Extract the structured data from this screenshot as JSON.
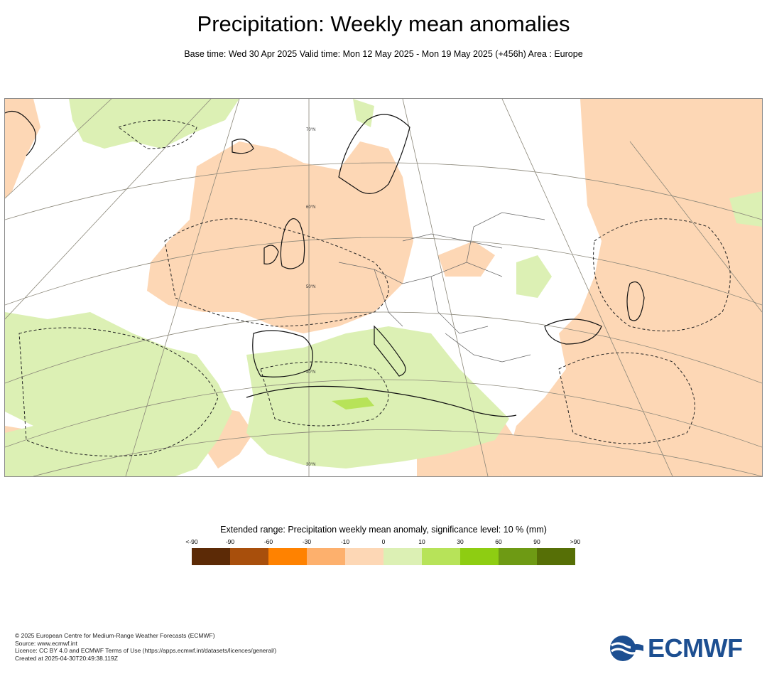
{
  "header": {
    "title": "Precipitation: Weekly mean anomalies",
    "subtitle": "Base time: Wed 30 Apr 2025 Valid time: Mon 12 May 2025 - Mon 19 May 2025 (+456h) Area : Europe"
  },
  "map": {
    "region": "Europe",
    "lat_labels": [
      "70°N",
      "60°N",
      "50°N",
      "40°N",
      "30°N"
    ]
  },
  "legend": {
    "title": "Extended range: Precipitation weekly mean anomaly, significance level: 10 % (mm)",
    "ticks": [
      "<-90",
      "-90",
      "-60",
      "-30",
      "-10",
      "0",
      "10",
      "30",
      "60",
      "90",
      ">90"
    ],
    "colors": [
      "#5c2a06",
      "#a84f0c",
      "#ff8200",
      "#fdb06d",
      "#fdd7b5",
      "#dcf0b4",
      "#b7e359",
      "#8ecd12",
      "#6e9a14",
      "#566f06"
    ]
  },
  "footer": {
    "line1": "© 2025 European Centre for Medium-Range Weather Forecasts (ECMWF)",
    "line2": "Source: www.ecmwf.int",
    "line3": "Licence: CC BY 4.0 and ECMWF Terms of Use (https://apps.ecmwf.int/datasets/licences/general/)",
    "line4": "Created at 2025-04-30T20:49:38.119Z"
  },
  "logo": {
    "text": "ECMWF"
  }
}
